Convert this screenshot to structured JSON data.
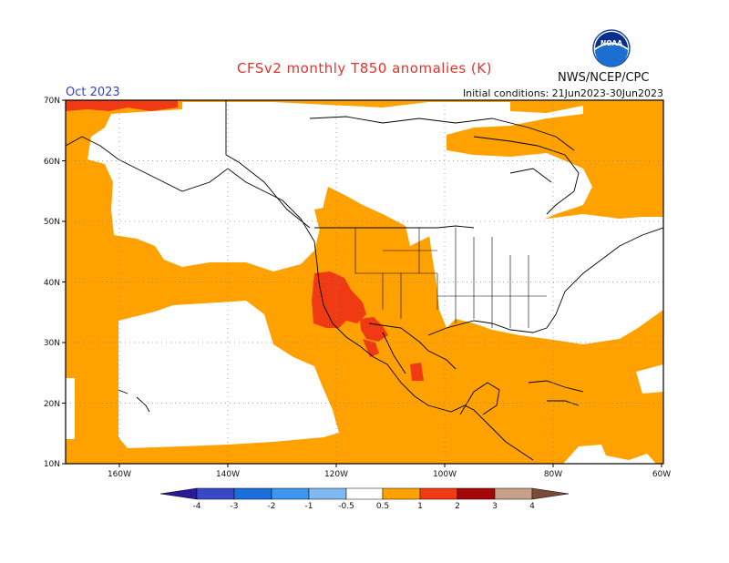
{
  "title": "CFSv2 monthly T850 anomalies (K)",
  "month": "Oct 2023",
  "initial_conditions": "Initial conditions: 21Jun2023-30Jun2023",
  "agency": "NWS/NCEP/CPC",
  "logo_text": "NOAA",
  "colors": {
    "anom_0_5_1": "#ffa200",
    "anom_1_2": "#f03a14",
    "ocean_land_neutral": "#ffffff",
    "title": "#e8302a",
    "month": "#3340c8"
  },
  "map": {
    "lat_labels": [
      "70N",
      "60N",
      "50N",
      "40N",
      "30N",
      "20N",
      "10N"
    ],
    "lon_labels": [
      "160W",
      "140W",
      "120W",
      "100W",
      "80W",
      "60W"
    ]
  },
  "colorbar": {
    "labels": [
      "-4",
      "-3",
      "-2",
      "-1",
      "-0.5",
      "0.5",
      "1",
      "2",
      "3",
      "4"
    ],
    "colors": [
      "#2a1a9a",
      "#3a48c8",
      "#1a6fd8",
      "#3c96f0",
      "#7fb8f2",
      "#ffffff",
      "#ffa200",
      "#f03a14",
      "#a5080a",
      "#c8a08a",
      "#7a4a3a"
    ]
  }
}
